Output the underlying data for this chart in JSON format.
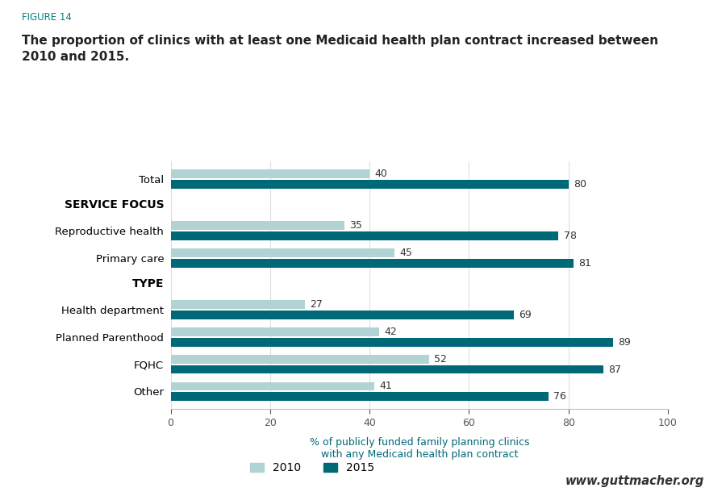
{
  "figure_label": "FIGURE 14",
  "title": "The proportion of clinics with at least one Medicaid health plan contract increased between\n2010 and 2015.",
  "xlabel": "% of publicly funded family planning clinics\nwith any Medicaid health plan contract",
  "xlim": [
    0,
    100
  ],
  "xticks": [
    0,
    20,
    40,
    60,
    80,
    100
  ],
  "categories": [
    "Total",
    "SERVICE FOCUS",
    "Reproductive health",
    "Primary care",
    "TYPE",
    "Health department",
    "Planned Parenthood",
    "FQHC",
    "Other"
  ],
  "is_header": [
    false,
    true,
    false,
    false,
    true,
    false,
    false,
    false,
    false
  ],
  "values_2010": [
    40,
    null,
    35,
    45,
    null,
    27,
    42,
    52,
    41
  ],
  "values_2015": [
    80,
    null,
    78,
    81,
    null,
    69,
    89,
    87,
    76
  ],
  "color_2010": "#b2d3d3",
  "color_2015": "#006978",
  "bar_height": 0.32,
  "figure_label_color": "#008080",
  "title_color": "#1a1a1a",
  "header_color": "#1a1a1a",
  "axis_label_color": "#555555",
  "xlabel_color": "#006978",
  "background_color": "#ffffff",
  "watermark": "www.guttmacher.org",
  "legend_labels": [
    "2010",
    "2015"
  ],
  "teal_line_color": "#008080",
  "grid_color": "#dddddd",
  "bottom_line_color": "#bbbbbb"
}
